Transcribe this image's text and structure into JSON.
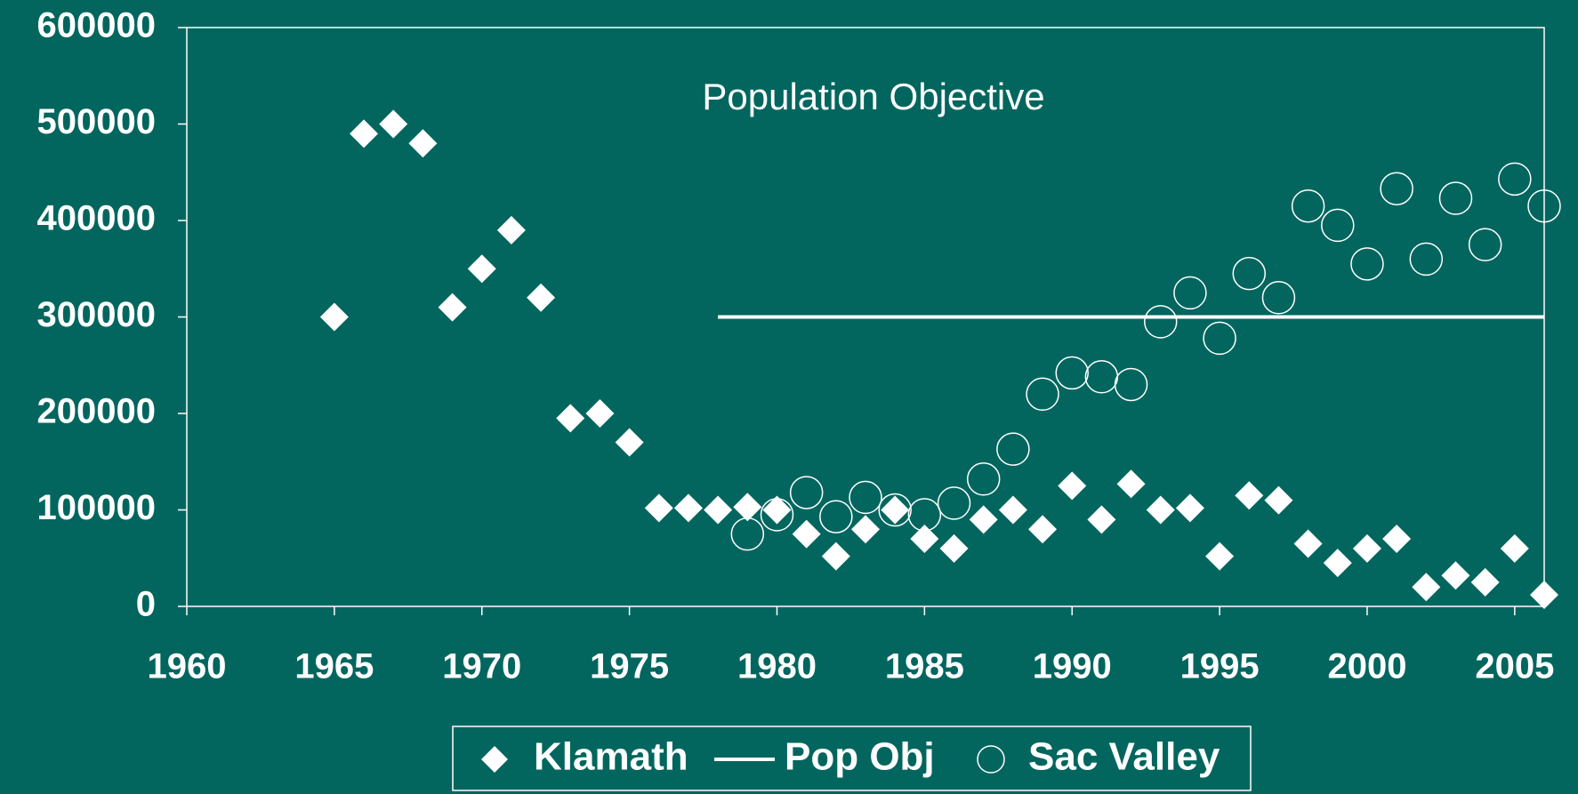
{
  "chart_data": {
    "type": "scatter",
    "annotation": "Population Objective",
    "xlim": [
      1960,
      2006
    ],
    "xticks": [
      1960,
      1965,
      1970,
      1975,
      1980,
      1985,
      1990,
      1995,
      2000,
      2005
    ],
    "ylim": [
      0,
      600000
    ],
    "yticks": [
      0,
      100000,
      200000,
      300000,
      400000,
      500000,
      600000
    ],
    "legend": "bottom",
    "series": [
      {
        "name": "Klamath",
        "color": "#ffffff",
        "marker": "diamond",
        "x": [
          1965,
          1966,
          1967,
          1968,
          1969,
          1970,
          1971,
          1972,
          1973,
          1974,
          1975,
          1976,
          1977,
          1978,
          1979,
          1980,
          1981,
          1982,
          1983,
          1984,
          1985,
          1986,
          1987,
          1988,
          1989,
          1990,
          1991,
          1992,
          1993,
          1994,
          1995,
          1996,
          1997,
          1998,
          1999,
          2000,
          2001,
          2002,
          2003,
          2004,
          2005,
          2006
        ],
        "values": [
          300000,
          490000,
          500000,
          480000,
          310000,
          350000,
          390000,
          320000,
          195000,
          200000,
          170000,
          102000,
          102000,
          100000,
          103000,
          100000,
          75000,
          52000,
          80000,
          100000,
          70000,
          60000,
          90000,
          100000,
          80000,
          125000,
          90000,
          127000,
          100000,
          102000,
          52000,
          115000,
          110000,
          65000,
          45000,
          60000,
          70000,
          20000,
          32000,
          25000,
          60000,
          12000
        ]
      },
      {
        "name": "Pop Obj",
        "color": "#ffffff",
        "marker": "line",
        "x": [
          1978,
          2006
        ],
        "values": [
          300000,
          300000
        ]
      },
      {
        "name": "Sac Valley",
        "color": "#ffffff",
        "marker": "circle",
        "x": [
          1979,
          1980,
          1981,
          1982,
          1983,
          1984,
          1985,
          1986,
          1987,
          1988,
          1989,
          1990,
          1991,
          1992,
          1993,
          1994,
          1995,
          1996,
          1997,
          1998,
          1999,
          2000,
          2001,
          2002,
          2003,
          2004,
          2005,
          2006
        ],
        "values": [
          75000,
          95000,
          118000,
          93000,
          113000,
          100000,
          95000,
          107000,
          132000,
          163000,
          220000,
          242000,
          238000,
          230000,
          295000,
          325000,
          278000,
          345000,
          320000,
          415000,
          395000,
          355000,
          433000,
          360000,
          423000,
          375000,
          443000,
          415000
        ]
      }
    ]
  }
}
